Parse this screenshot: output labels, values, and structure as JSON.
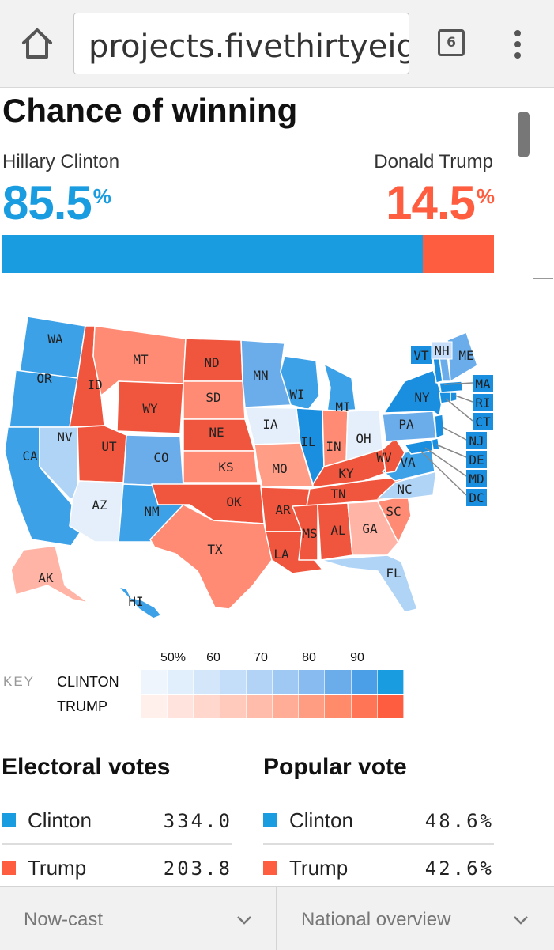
{
  "browser": {
    "url": "projects.fivethirtyeight.com",
    "tab_count": "6"
  },
  "header": {
    "title": "Chance of winning"
  },
  "candidates": {
    "clinton": {
      "name": "Hillary Clinton",
      "pct": "85.5",
      "pct_value": 85.5,
      "color": "#1a9de0"
    },
    "trump": {
      "name": "Donald Trump",
      "pct": "14.5",
      "pct_value": 14.5,
      "color": "#ff5d40"
    },
    "pct_symbol": "%"
  },
  "map": {
    "label_states": {
      "WA": "clinton",
      "OR": "clinton",
      "CA": "clinton",
      "NV": "lean-clinton",
      "ID": "trump",
      "MT": "lean-trump",
      "WY": "trump",
      "UT": "trump",
      "AZ": "tossup-clinton",
      "CO": "clinton",
      "NM": "clinton",
      "ND": "trump",
      "SD": "lean-trump",
      "NE": "trump",
      "KS": "lean-trump",
      "OK": "trump",
      "TX": "lean-trump",
      "MN": "clinton",
      "IA": "tossup-clinton",
      "MO": "lean-trump",
      "AR": "trump",
      "LA": "trump",
      "WI": "clinton",
      "IL": "clinton",
      "MI": "clinton",
      "IN": "lean-trump",
      "OH": "tossup-clinton",
      "KY": "trump",
      "TN": "trump",
      "MS": "trump",
      "AL": "trump",
      "GA": "lean-trump",
      "FL": "lean-clinton",
      "SC": "lean-trump",
      "NC": "lean-clinton",
      "VA": "clinton",
      "WV": "trump",
      "PA": "clinton",
      "NY": "clinton",
      "ME": "clinton",
      "AK": "lean-trump",
      "HI": "clinton"
    },
    "callouts": [
      "VT",
      "NH",
      "ME",
      "MA",
      "RI",
      "CT",
      "NJ",
      "DE",
      "MD",
      "DC"
    ]
  },
  "key": {
    "label": "KEY",
    "clinton_label": "CLINTON",
    "trump_label": "TRUMP",
    "ticks": [
      "50%",
      "60",
      "70",
      "80",
      "90"
    ],
    "clinton_scale": [
      "#eef5fd",
      "#e1eefb",
      "#d4e7fa",
      "#c4ddf8",
      "#b3d3f6",
      "#9fc8f3",
      "#88bbef",
      "#6badeb",
      "#4a9fe6",
      "#1a9de0"
    ],
    "trump_scale": [
      "#fff0ec",
      "#ffe3dc",
      "#ffd7cc",
      "#ffcabc",
      "#ffbcaa",
      "#ffad97",
      "#ff9d82",
      "#ff8b6b",
      "#ff7555",
      "#ff5d40"
    ]
  },
  "electoral": {
    "title": "Electoral votes",
    "rows": [
      {
        "name": "Clinton",
        "value": "334.0"
      },
      {
        "name": "Trump",
        "value": "203.8"
      }
    ]
  },
  "popular": {
    "title": "Popular vote",
    "rows": [
      {
        "name": "Clinton",
        "value": "48.6%"
      },
      {
        "name": "Trump",
        "value": "42.6%"
      }
    ]
  },
  "bottom": {
    "left_select": "Now-cast",
    "right_select": "National overview"
  }
}
